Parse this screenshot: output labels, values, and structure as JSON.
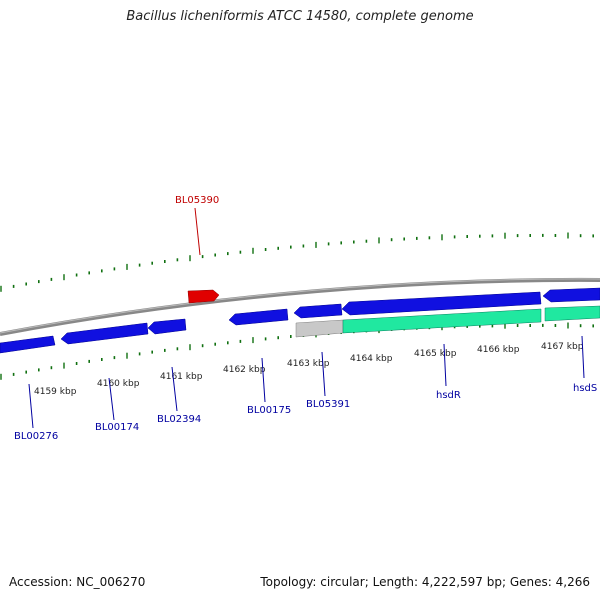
{
  "title": "Bacillus licheniformis ATCC 14580, complete genome",
  "accession": {
    "label": "Accession:",
    "value": "NC_006270"
  },
  "topology": {
    "label": "Topology:",
    "value": "circular"
  },
  "length": {
    "label": "Length:",
    "value": "4,222,597 bp"
  },
  "genes_count": {
    "label": "Genes:",
    "value": "4,266"
  },
  "colors": {
    "backbone": "#888888",
    "forward_gene": "#1010e0",
    "reverse_gene": "#1010e0",
    "highlight_gene": "#e00000",
    "rna_gene": "#20e8a0",
    "pseudo_gene": "#c0c0c0",
    "tick": "#107010",
    "gene_label": "#0000a0",
    "highlight_label": "#c00000"
  },
  "scale_labels": [
    "4159 kbp",
    "4160 kbp",
    "4161 kbp",
    "4162 kbp",
    "4163 kbp",
    "4164 kbp",
    "4165 kbp",
    "4166 kbp",
    "4167 kbp"
  ],
  "gene_labels": [
    {
      "name": "BL05390",
      "kind": "highlight"
    },
    {
      "name": "BL00276",
      "kind": "normal"
    },
    {
      "name": "BL00174",
      "kind": "normal"
    },
    {
      "name": "BL02394",
      "kind": "normal"
    },
    {
      "name": "BL00175",
      "kind": "normal"
    },
    {
      "name": "BL05391",
      "kind": "normal"
    },
    {
      "name": "hsdR",
      "kind": "normal"
    },
    {
      "name": "hsdS",
      "kind": "normal"
    }
  ]
}
